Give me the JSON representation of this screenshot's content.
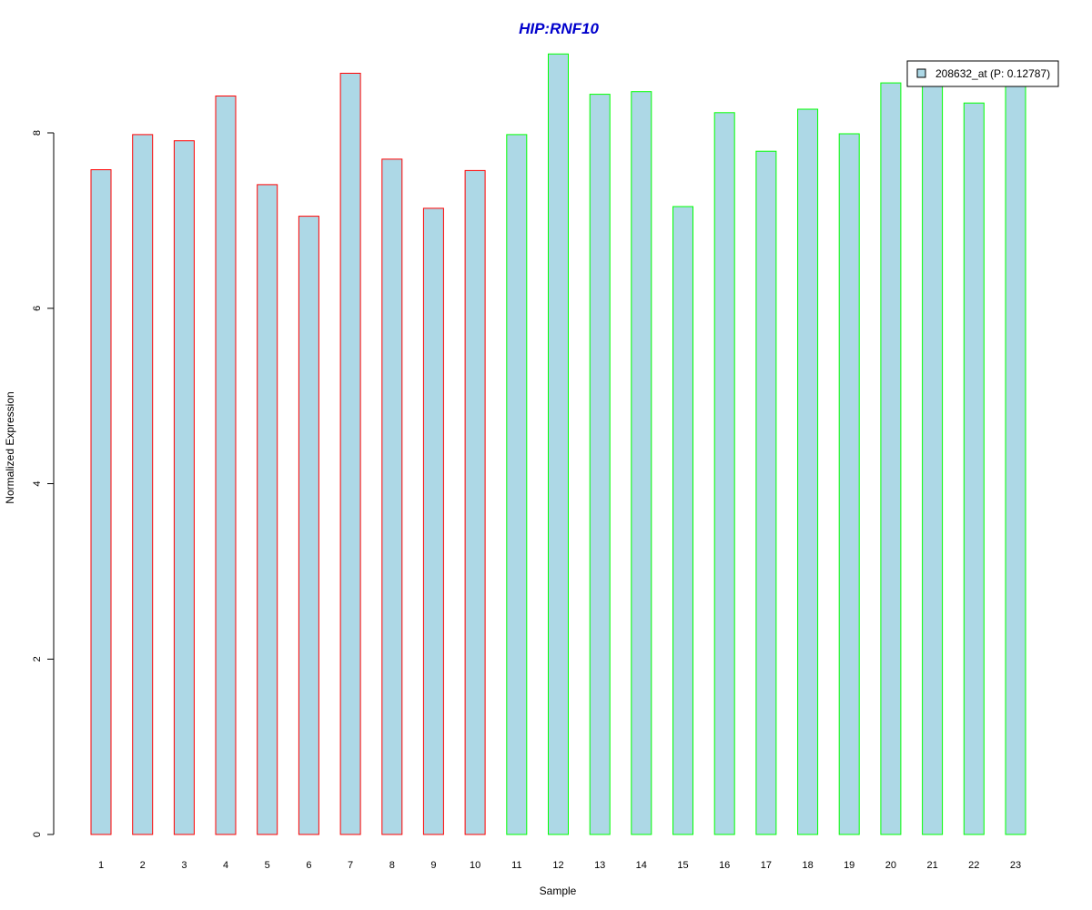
{
  "chart_data": {
    "type": "bar",
    "title": "HIP:RNF10",
    "xlabel": "Sample",
    "ylabel": "Normalized Expression",
    "categories": [
      "1",
      "2",
      "3",
      "4",
      "5",
      "6",
      "7",
      "8",
      "9",
      "10",
      "11",
      "12",
      "13",
      "14",
      "15",
      "16",
      "17",
      "18",
      "19",
      "20",
      "21",
      "22",
      "23"
    ],
    "values": [
      7.58,
      7.98,
      7.91,
      8.42,
      7.41,
      7.05,
      8.68,
      7.7,
      7.14,
      7.57,
      7.98,
      8.9,
      8.44,
      8.47,
      7.16,
      8.23,
      7.79,
      8.27,
      7.99,
      8.57,
      8.55,
      8.34,
      8.57
    ],
    "ylim": [
      0,
      9
    ],
    "yticks": [
      "0",
      "2",
      "4",
      "6",
      "8"
    ],
    "bar_fill": "#add8e6",
    "border_colors": [
      "#ff0000",
      "#ff0000",
      "#ff0000",
      "#ff0000",
      "#ff0000",
      "#ff0000",
      "#ff0000",
      "#ff0000",
      "#ff0000",
      "#ff0000",
      "#00ff00",
      "#00ff00",
      "#00ff00",
      "#00ff00",
      "#00ff00",
      "#00ff00",
      "#00ff00",
      "#00ff00",
      "#00ff00",
      "#00ff00",
      "#00ff00",
      "#00ff00",
      "#00ff00"
    ],
    "title_color": "#0000cc",
    "legend": {
      "position": "top-right",
      "label": "208632_at (P: 0.12787)"
    },
    "grid": false
  }
}
